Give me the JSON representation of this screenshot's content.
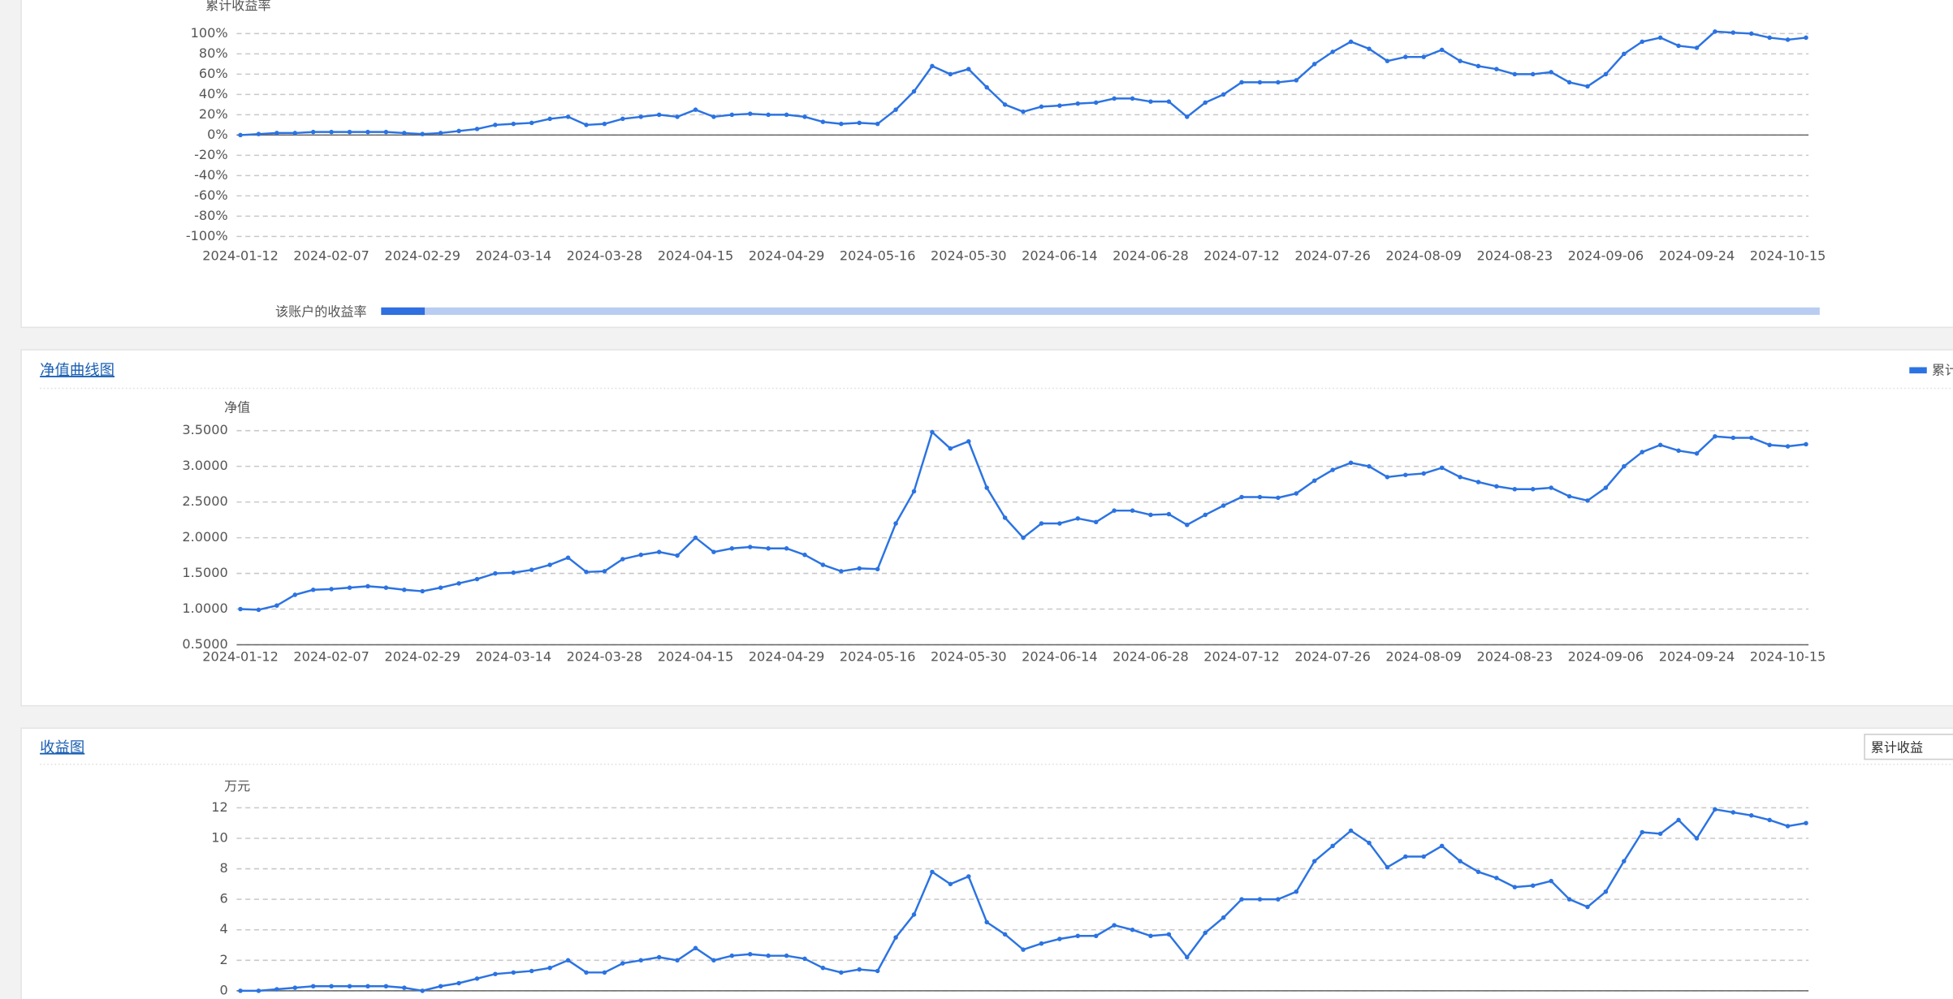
{
  "panels": [
    {
      "chart_data": {
        "type": "line",
        "y_label": "累计收益率",
        "zoom_label": "该账户的收益率",
        "ylim": [
          -100,
          100
        ],
        "yticks": [
          {
            "value": 100,
            "label": "100%"
          },
          {
            "value": 80,
            "label": "80%"
          },
          {
            "value": 60,
            "label": "60%"
          },
          {
            "value": 40,
            "label": "40%"
          },
          {
            "value": 20,
            "label": "20%"
          },
          {
            "value": 0,
            "label": "0%"
          },
          {
            "value": -20,
            "label": "-20%"
          },
          {
            "value": -40,
            "label": "-40%"
          },
          {
            "value": -60,
            "label": "-60%"
          },
          {
            "value": -80,
            "label": "-80%"
          },
          {
            "value": -100,
            "label": "-100%"
          }
        ],
        "grid": true,
        "categories": [
          "2024-01-12",
          null,
          null,
          null,
          null,
          "2024-02-07",
          null,
          null,
          null,
          null,
          "2024-02-29",
          null,
          null,
          null,
          null,
          "2024-03-14",
          null,
          null,
          null,
          null,
          "2024-03-28",
          null,
          null,
          null,
          null,
          "2024-04-15",
          null,
          null,
          null,
          null,
          "2024-04-29",
          null,
          null,
          null,
          null,
          "2024-05-16",
          null,
          null,
          null,
          null,
          "2024-05-30",
          null,
          null,
          null,
          null,
          "2024-06-14",
          null,
          null,
          null,
          null,
          "2024-06-28",
          null,
          null,
          null,
          null,
          "2024-07-12",
          null,
          null,
          null,
          null,
          "2024-07-26",
          null,
          null,
          null,
          null,
          "2024-08-09",
          null,
          null,
          null,
          null,
          "2024-08-23",
          null,
          null,
          null,
          null,
          "2024-09-06",
          null,
          null,
          null,
          null,
          "2024-09-24",
          null,
          null,
          null,
          null,
          "2024-10-15",
          null
        ],
        "series": [
          {
            "color": "#2b73e2",
            "values": [
              0,
              1,
              2,
              2,
              3,
              3,
              3,
              3,
              3,
              2,
              1,
              2,
              4,
              6,
              10,
              11,
              12,
              16,
              18,
              10,
              11,
              16,
              18,
              20,
              18,
              25,
              18,
              20,
              21,
              20,
              20,
              18,
              13,
              11,
              12,
              11,
              25,
              43,
              68,
              60,
              65,
              47,
              30,
              23,
              28,
              29,
              31,
              32,
              36,
              36,
              33,
              33,
              18,
              32,
              40,
              52,
              52,
              52,
              54,
              70,
              82,
              92,
              85,
              73,
              77,
              77,
              84,
              73,
              68,
              65,
              60,
              60,
              62,
              52,
              48,
              60,
              80,
              92,
              96,
              88,
              86,
              102,
              101,
              100,
              96,
              94,
              96
            ]
          }
        ]
      }
    },
    {
      "title": "净值曲线图",
      "chart_data": {
        "type": "line",
        "y_label": "净值",
        "ylim": [
          0.5,
          3.5
        ],
        "yticks": [
          {
            "value": 3.5,
            "label": "3.5000"
          },
          {
            "value": 3,
            "label": "3.0000"
          },
          {
            "value": 2.5,
            "label": "2.5000"
          },
          {
            "value": 2,
            "label": "2.0000"
          },
          {
            "value": 1.5,
            "label": "1.5000"
          },
          {
            "value": 1,
            "label": "1.0000"
          },
          {
            "value": 0.5,
            "label": "0.5000"
          }
        ],
        "grid": true,
        "categories": [
          "2024-01-12",
          null,
          null,
          null,
          null,
          "2024-02-07",
          null,
          null,
          null,
          null,
          "2024-02-29",
          null,
          null,
          null,
          null,
          "2024-03-14",
          null,
          null,
          null,
          null,
          "2024-03-28",
          null,
          null,
          null,
          null,
          "2024-04-15",
          null,
          null,
          null,
          null,
          "2024-04-29",
          null,
          null,
          null,
          null,
          "2024-05-16",
          null,
          null,
          null,
          null,
          "2024-05-30",
          null,
          null,
          null,
          null,
          "2024-06-14",
          null,
          null,
          null,
          null,
          "2024-06-28",
          null,
          null,
          null,
          null,
          "2024-07-12",
          null,
          null,
          null,
          null,
          "2024-07-26",
          null,
          null,
          null,
          null,
          "2024-08-09",
          null,
          null,
          null,
          null,
          "2024-08-23",
          null,
          null,
          null,
          null,
          "2024-09-06",
          null,
          null,
          null,
          null,
          "2024-09-24",
          null,
          null,
          null,
          null,
          "2024-10-15",
          null
        ],
        "series": [
          {
            "name": "累计",
            "color": "#2b73e2",
            "values": [
              1.0,
              0.99,
              1.05,
              1.2,
              1.27,
              1.28,
              1.3,
              1.32,
              1.3,
              1.27,
              1.25,
              1.3,
              1.36,
              1.42,
              1.5,
              1.51,
              1.55,
              1.62,
              1.72,
              1.52,
              1.53,
              1.7,
              1.76,
              1.8,
              1.75,
              2.0,
              1.8,
              1.85,
              1.87,
              1.85,
              1.85,
              1.76,
              1.62,
              1.53,
              1.57,
              1.56,
              2.2,
              2.65,
              3.48,
              3.25,
              3.35,
              2.7,
              2.28,
              2.0,
              2.2,
              2.2,
              2.27,
              2.22,
              2.38,
              2.38,
              2.32,
              2.33,
              2.18,
              2.32,
              2.45,
              2.57,
              2.57,
              2.56,
              2.62,
              2.8,
              2.95,
              3.05,
              3.0,
              2.85,
              2.88,
              2.9,
              2.98,
              2.85,
              2.78,
              2.72,
              2.68,
              2.68,
              2.7,
              2.58,
              2.52,
              2.7,
              3.0,
              3.2,
              3.3,
              3.22,
              3.18,
              3.42,
              3.4,
              3.4,
              3.3,
              3.28,
              3.31
            ]
          }
        ]
      }
    },
    {
      "title": "收益图",
      "selector": "累计收益",
      "chart_data": {
        "type": "line",
        "y_label": "万元",
        "ylim": [
          0,
          12
        ],
        "yticks": [
          12,
          10,
          8,
          6,
          4,
          2,
          0
        ],
        "grid": true,
        "series": [
          {
            "color": "#2b73e2",
            "values": [
              0,
              0,
              0.1,
              0.2,
              0.3,
              0.3,
              0.3,
              0.3,
              0.3,
              0.2,
              0,
              0.3,
              0.5,
              0.8,
              1.1,
              1.2,
              1.3,
              1.5,
              2,
              1.2,
              1.2,
              1.8,
              2.0,
              2.2,
              2.0,
              2.8,
              2.0,
              2.3,
              2.4,
              2.3,
              2.3,
              2.1,
              1.5,
              1.2,
              1.4,
              1.3,
              3.5,
              5,
              7.8,
              7,
              7.5,
              4.5,
              3.7,
              2.7,
              3.1,
              3.4,
              3.6,
              3.6,
              4.3,
              4.0,
              3.6,
              3.7,
              2.2,
              3.8,
              4.8,
              6,
              6,
              6,
              6.5,
              8.5,
              9.5,
              10.5,
              9.7,
              8.1,
              8.8,
              8.8,
              9.5,
              8.5,
              7.8,
              7.4,
              6.8,
              6.9,
              7.2,
              6.0,
              5.5,
              6.5,
              8.5,
              10.4,
              10.3,
              11.2,
              10.0,
              11.9,
              11.7,
              11.5,
              11.2,
              10.8,
              11.0
            ]
          }
        ]
      }
    }
  ]
}
